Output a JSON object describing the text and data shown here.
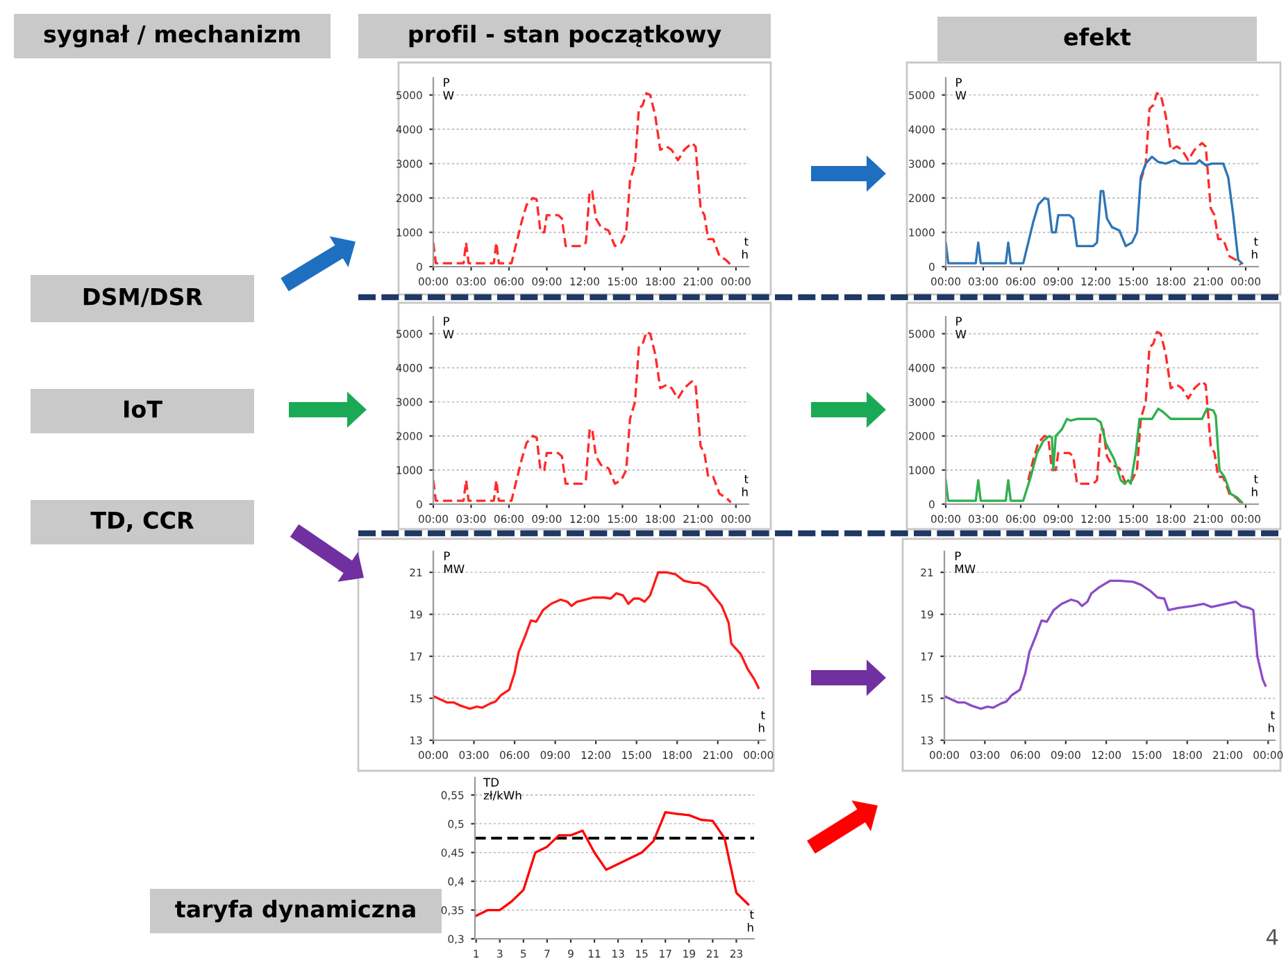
{
  "chart_data": [
    {
      "type": "other",
      "annotations": [
        "sygnał / mechanizm",
        "profil - stan początkowy",
        "efekt",
        "DSM/DSR",
        "IoT",
        "TD, CCR",
        "taryfa dynamiczna",
        "4"
      ]
    },
    {
      "type": "line",
      "ylabel": "P\nW",
      "xlabel": "t\nh",
      "xlim": [
        0,
        25
      ],
      "ylim": [
        0,
        5500
      ],
      "grid": "y",
      "xticks": [
        {
          "value": 0,
          "label": "00:00"
        },
        {
          "value": 3,
          "label": "03:00"
        },
        {
          "value": 6,
          "label": "06:00"
        },
        {
          "value": 9,
          "label": "09:00"
        },
        {
          "value": 12,
          "label": "12:00"
        },
        {
          "value": 15,
          "label": "15:00"
        },
        {
          "value": 18,
          "label": "18:00"
        },
        {
          "value": 21,
          "label": "21:00"
        },
        {
          "value": 24,
          "label": "00:00"
        }
      ],
      "yticks": [
        0,
        1000,
        2000,
        3000,
        4000,
        5000
      ],
      "series": [
        {
          "color": "#ff2a2a",
          "line_style": "dashed",
          "x": [
            0,
            0.2,
            2.4,
            2.6,
            2.8,
            4.8,
            5.0,
            5.2,
            6.2,
            6.6,
            7.0,
            7.4,
            7.9,
            8.2,
            8.5,
            8.8,
            9.0,
            9.9,
            10.2,
            10.5,
            11.8,
            12.1,
            12.4,
            12.6,
            12.9,
            13.3,
            13.9,
            14.4,
            14.9,
            15.3,
            15.6,
            16.0,
            16.3,
            16.6,
            16.9,
            17.2,
            17.6,
            18.0,
            18.5,
            18.9,
            19.4,
            19.9,
            20.5,
            20.8,
            21.2,
            21.5,
            21.8,
            22.2,
            22.7,
            23.2,
            23.6
          ],
          "values": [
            700,
            100,
            100,
            700,
            100,
            100,
            700,
            100,
            100,
            700,
            1300,
            1800,
            2000,
            1950,
            1000,
            1000,
            1500,
            1500,
            1400,
            600,
            600,
            700,
            2200,
            2200,
            1400,
            1150,
            1050,
            600,
            700,
            1000,
            2500,
            3000,
            4600,
            4700,
            5050,
            5000,
            4400,
            3400,
            3500,
            3400,
            3100,
            3400,
            3600,
            3500,
            1700,
            1500,
            800,
            800,
            300,
            200,
            50
          ]
        }
      ]
    },
    {
      "type": "line",
      "ylabel": "P\nW",
      "xlabel": "t\nh",
      "xlim": [
        0,
        25
      ],
      "ylim": [
        0,
        5500
      ],
      "grid": "y",
      "xticks": [
        {
          "value": 0,
          "label": "00:00"
        },
        {
          "value": 3,
          "label": "03:00"
        },
        {
          "value": 6,
          "label": "06:00"
        },
        {
          "value": 9,
          "label": "09:00"
        },
        {
          "value": 12,
          "label": "12:00"
        },
        {
          "value": 15,
          "label": "15:00"
        },
        {
          "value": 18,
          "label": "18:00"
        },
        {
          "value": 21,
          "label": "21:00"
        },
        {
          "value": 24,
          "label": "00:00"
        }
      ],
      "yticks": [
        0,
        1000,
        2000,
        3000,
        4000,
        5000
      ],
      "series": [
        {
          "color": "#ff2a2a",
          "line_style": "dashed",
          "x": [
            15.6,
            16.0,
            16.3,
            16.6,
            16.9,
            17.2,
            17.6,
            18.0,
            18.5,
            18.9,
            19.4,
            19.9,
            20.5,
            20.8,
            21.2,
            21.5,
            21.8,
            22.2,
            22.7,
            23.2,
            23.6
          ],
          "values": [
            2500,
            3000,
            4600,
            4700,
            5050,
            5000,
            4400,
            3400,
            3500,
            3400,
            3100,
            3400,
            3600,
            3500,
            1700,
            1500,
            800,
            800,
            300,
            200,
            50
          ]
        },
        {
          "color": "#2e75b6",
          "line_style": "solid",
          "x": [
            0,
            0.2,
            2.4,
            2.6,
            2.8,
            4.8,
            5.0,
            5.2,
            6.2,
            6.6,
            7.0,
            7.4,
            7.9,
            8.2,
            8.5,
            8.8,
            9.0,
            9.9,
            10.2,
            10.5,
            11.8,
            12.1,
            12.4,
            12.6,
            12.9,
            13.3,
            13.9,
            14.4,
            14.9,
            15.3,
            15.6,
            16.0,
            16.5,
            17.0,
            17.6,
            18.3,
            18.8,
            20.0,
            20.3,
            20.8,
            21.3,
            22.2,
            22.6,
            23.0,
            23.4,
            23.7
          ],
          "values": [
            700,
            100,
            100,
            700,
            100,
            100,
            700,
            100,
            100,
            700,
            1300,
            1800,
            2000,
            1950,
            1000,
            1000,
            1500,
            1500,
            1400,
            600,
            600,
            700,
            2200,
            2200,
            1400,
            1150,
            1050,
            600,
            700,
            1000,
            2600,
            3000,
            3200,
            3050,
            3000,
            3100,
            3000,
            3000,
            3100,
            2950,
            3000,
            3000,
            2600,
            1500,
            200,
            100
          ]
        }
      ]
    },
    {
      "type": "line",
      "ylabel": "P\nW",
      "xlabel": "t\nh",
      "xlim": [
        0,
        25
      ],
      "ylim": [
        0,
        5500
      ],
      "grid": "y",
      "xticks": [
        {
          "value": 0,
          "label": "00:00"
        },
        {
          "value": 3,
          "label": "03:00"
        },
        {
          "value": 6,
          "label": "06:00"
        },
        {
          "value": 9,
          "label": "09:00"
        },
        {
          "value": 12,
          "label": "12:00"
        },
        {
          "value": 15,
          "label": "15:00"
        },
        {
          "value": 18,
          "label": "18:00"
        },
        {
          "value": 21,
          "label": "21:00"
        },
        {
          "value": 24,
          "label": "00:00"
        }
      ],
      "yticks": [
        0,
        1000,
        2000,
        3000,
        4000,
        5000
      ],
      "series": [
        {
          "color": "#ff2a2a",
          "line_style": "dashed",
          "x": [
            0,
            0.2,
            2.4,
            2.6,
            2.8,
            4.8,
            5.0,
            5.2,
            6.2,
            6.6,
            7.0,
            7.4,
            7.9,
            8.2,
            8.5,
            8.8,
            9.0,
            9.9,
            10.2,
            10.5,
            11.8,
            12.1,
            12.4,
            12.6,
            12.9,
            13.3,
            13.9,
            14.4,
            14.9,
            15.3,
            15.6,
            16.0,
            16.3,
            16.6,
            16.9,
            17.2,
            17.6,
            18.0,
            18.5,
            18.9,
            19.4,
            19.9,
            20.5,
            20.8,
            21.2,
            21.5,
            21.8,
            22.2,
            22.7,
            23.2,
            23.6
          ],
          "values": [
            700,
            100,
            100,
            700,
            100,
            100,
            700,
            100,
            100,
            700,
            1300,
            1800,
            2000,
            1950,
            1000,
            1000,
            1500,
            1500,
            1400,
            600,
            600,
            700,
            2200,
            2200,
            1400,
            1150,
            1050,
            600,
            700,
            1000,
            2500,
            3000,
            4600,
            4700,
            5050,
            5000,
            4400,
            3400,
            3500,
            3400,
            3100,
            3400,
            3600,
            3500,
            1700,
            1500,
            800,
            800,
            300,
            200,
            50
          ]
        }
      ]
    },
    {
      "type": "line",
      "ylabel": "P\nW",
      "xlabel": "t\nh",
      "xlim": [
        0,
        25
      ],
      "ylim": [
        0,
        5500
      ],
      "grid": "y",
      "xticks": [
        {
          "value": 0,
          "label": "00:00"
        },
        {
          "value": 3,
          "label": "03:00"
        },
        {
          "value": 6,
          "label": "06:00"
        },
        {
          "value": 9,
          "label": "09:00"
        },
        {
          "value": 12,
          "label": "12:00"
        },
        {
          "value": 15,
          "label": "15:00"
        },
        {
          "value": 18,
          "label": "18:00"
        },
        {
          "value": 21,
          "label": "21:00"
        },
        {
          "value": 24,
          "label": "00:00"
        }
      ],
      "yticks": [
        0,
        1000,
        2000,
        3000,
        4000,
        5000
      ],
      "series": [
        {
          "color": "#ff2a2a",
          "line_style": "dashed",
          "x": [
            6.6,
            7.0,
            7.4,
            7.9,
            8.2,
            8.5,
            8.8,
            9.0,
            9.9,
            10.2,
            10.5,
            11.8,
            12.1,
            12.4,
            12.6,
            12.9,
            13.3,
            13.9,
            14.4,
            14.9,
            15.3,
            15.6,
            16.0,
            16.3,
            16.6,
            16.9,
            17.2,
            17.6,
            18.0,
            18.5,
            18.9,
            19.4,
            19.9,
            20.5,
            20.8,
            21.2,
            21.5,
            21.8,
            22.2,
            22.7,
            23.2,
            23.6
          ],
          "values": [
            700,
            1300,
            1800,
            2000,
            1950,
            1000,
            1000,
            1500,
            1500,
            1400,
            600,
            600,
            700,
            2200,
            2200,
            1400,
            1150,
            1050,
            600,
            700,
            1000,
            2500,
            3000,
            4600,
            4700,
            5050,
            5000,
            4400,
            3400,
            3500,
            3400,
            3100,
            3400,
            3600,
            3500,
            1700,
            1500,
            800,
            800,
            300,
            200,
            50
          ]
        },
        {
          "color": "#2eb04f",
          "line_style": "solid",
          "x": [
            0,
            0.2,
            2.4,
            2.6,
            2.8,
            4.8,
            5.0,
            5.2,
            6.2,
            6.8,
            7.3,
            7.8,
            8.3,
            8.5,
            8.6,
            8.8,
            9.3,
            9.7,
            10.0,
            10.5,
            12.0,
            12.4,
            12.8,
            13.5,
            14.0,
            14.3,
            14.6,
            14.8,
            15.2,
            15.5,
            16.5,
            17.0,
            17.4,
            18.0,
            20.5,
            20.9,
            21.4,
            21.6,
            21.9,
            22.3,
            22.8,
            23.3,
            23.7
          ],
          "values": [
            700,
            100,
            100,
            700,
            100,
            100,
            700,
            100,
            100,
            800,
            1500,
            1850,
            2000,
            1950,
            1000,
            2000,
            2200,
            2500,
            2450,
            2500,
            2500,
            2400,
            1800,
            1300,
            700,
            600,
            700,
            600,
            1500,
            2500,
            2500,
            2800,
            2700,
            2500,
            2500,
            2800,
            2750,
            2600,
            1000,
            800,
            300,
            200,
            50
          ]
        }
      ]
    },
    {
      "type": "line",
      "ylabel": "P\nMW",
      "xlabel": "t\nh",
      "xlim": [
        0,
        24.5
      ],
      "ylim": [
        13,
        22
      ],
      "grid": "y",
      "xticks": [
        {
          "value": 0,
          "label": "00:00"
        },
        {
          "value": 3,
          "label": "03:00"
        },
        {
          "value": 6,
          "label": "06:00"
        },
        {
          "value": 9,
          "label": "09:00"
        },
        {
          "value": 12,
          "label": "12:00"
        },
        {
          "value": 15,
          "label": "15:00"
        },
        {
          "value": 18,
          "label": "18:00"
        },
        {
          "value": 21,
          "label": "21:00"
        },
        {
          "value": 24,
          "label": "00:00"
        }
      ],
      "yticks": [
        13,
        15,
        17,
        19,
        21
      ],
      "series": [
        {
          "color": "#ff1a1a",
          "line_style": "solid",
          "x": [
            0,
            0.5,
            1,
            1.5,
            2,
            2.7,
            3.2,
            3.6,
            4.2,
            4.6,
            5.0,
            5.6,
            6.0,
            6.3,
            6.8,
            7.2,
            7.6,
            8.1,
            8.7,
            9.4,
            9.9,
            10.2,
            10.6,
            11.2,
            11.8,
            12.6,
            13.1,
            13.5,
            14.0,
            14.4,
            14.8,
            15.2,
            15.6,
            16.0,
            16.6,
            17.2,
            17.9,
            18.5,
            19.2,
            19.6,
            20.2,
            20.8,
            21.3,
            21.8,
            22.0,
            22.7,
            23.2,
            23.7,
            24.0
          ],
          "values": [
            15.1,
            14.95,
            14.8,
            14.8,
            14.65,
            14.5,
            14.6,
            14.55,
            14.75,
            14.85,
            15.15,
            15.4,
            16.2,
            17.2,
            18.0,
            18.7,
            18.65,
            19.2,
            19.5,
            19.7,
            19.6,
            19.4,
            19.6,
            19.7,
            19.8,
            19.8,
            19.75,
            20.0,
            19.9,
            19.5,
            19.75,
            19.75,
            19.6,
            19.9,
            21.0,
            21.0,
            20.9,
            20.6,
            20.5,
            20.5,
            20.3,
            19.8,
            19.4,
            18.6,
            17.6,
            17.1,
            16.4,
            15.9,
            15.5
          ]
        }
      ]
    },
    {
      "type": "line",
      "ylabel": "P\nMW",
      "xlabel": "t\nh",
      "xlim": [
        0,
        24.5
      ],
      "ylim": [
        13,
        22
      ],
      "grid": "y",
      "xticks": [
        {
          "value": 0,
          "label": "00:00"
        },
        {
          "value": 3,
          "label": "03:00"
        },
        {
          "value": 6,
          "label": "06:00"
        },
        {
          "value": 9,
          "label": "09:00"
        },
        {
          "value": 12,
          "label": "12:00"
        },
        {
          "value": 15,
          "label": "15:00"
        },
        {
          "value": 18,
          "label": "18:00"
        },
        {
          "value": 21,
          "label": "21:00"
        },
        {
          "value": 24,
          "label": "00:00"
        }
      ],
      "yticks": [
        13,
        15,
        17,
        19,
        21
      ],
      "series": [
        {
          "color": "#8a4cc7",
          "line_style": "solid",
          "x": [
            0,
            0.5,
            1,
            1.5,
            2,
            2.7,
            3.2,
            3.6,
            4.2,
            4.6,
            5.0,
            5.6,
            6.0,
            6.3,
            6.8,
            7.2,
            7.6,
            8.1,
            8.7,
            9.4,
            9.9,
            10.2,
            10.6,
            10.9,
            11.5,
            12.3,
            13.0,
            14.0,
            14.6,
            15.3,
            15.8,
            16.3,
            16.6,
            17.3,
            18.4,
            19.2,
            19.8,
            20.5,
            21.2,
            21.6,
            22.0,
            22.6,
            22.9,
            23.2,
            23.6,
            23.8
          ],
          "values": [
            15.1,
            14.95,
            14.8,
            14.8,
            14.65,
            14.5,
            14.6,
            14.55,
            14.75,
            14.85,
            15.15,
            15.4,
            16.2,
            17.2,
            18.0,
            18.7,
            18.65,
            19.2,
            19.5,
            19.7,
            19.6,
            19.4,
            19.6,
            20.0,
            20.3,
            20.6,
            20.6,
            20.55,
            20.4,
            20.1,
            19.8,
            19.75,
            19.2,
            19.3,
            19.4,
            19.5,
            19.35,
            19.45,
            19.55,
            19.6,
            19.4,
            19.3,
            19.2,
            17.0,
            15.9,
            15.6
          ]
        }
      ]
    },
    {
      "type": "line",
      "ylabel": "TD\nzł/kWh",
      "xlabel": "t\nh",
      "xlim": [
        0.9,
        24.5
      ],
      "ylim": [
        0.3,
        0.58
      ],
      "grid": "y",
      "xticks": [
        1,
        3,
        5,
        7,
        9,
        11,
        13,
        15,
        17,
        19,
        21,
        23
      ],
      "yticks": [
        {
          "value": 0.3,
          "label": "0,3"
        },
        {
          "value": 0.35,
          "label": "0,35"
        },
        {
          "value": 0.4,
          "label": "0,4"
        },
        {
          "value": 0.45,
          "label": "0,45"
        },
        {
          "value": 0.5,
          "label": "0,5"
        },
        {
          "value": 0.55,
          "label": "0,55"
        }
      ],
      "ref_lines": [
        {
          "axis": "y",
          "value": 0.475,
          "color": "#000000",
          "line_style": "dashed"
        }
      ],
      "series": [
        {
          "color": "#ff0000",
          "line_style": "solid",
          "x": [
            1,
            2,
            3,
            4,
            5,
            6,
            7,
            8,
            9,
            10,
            11,
            12,
            13,
            14,
            15,
            16,
            17,
            18,
            19,
            20,
            21,
            22,
            23,
            24
          ],
          "values": [
            0.34,
            0.35,
            0.35,
            0.365,
            0.385,
            0.45,
            0.46,
            0.48,
            0.48,
            0.488,
            0.45,
            0.42,
            0.43,
            0.44,
            0.45,
            0.47,
            0.52,
            0.517,
            0.515,
            0.507,
            0.505,
            0.475,
            0.38,
            0.36
          ]
        }
      ]
    }
  ]
}
